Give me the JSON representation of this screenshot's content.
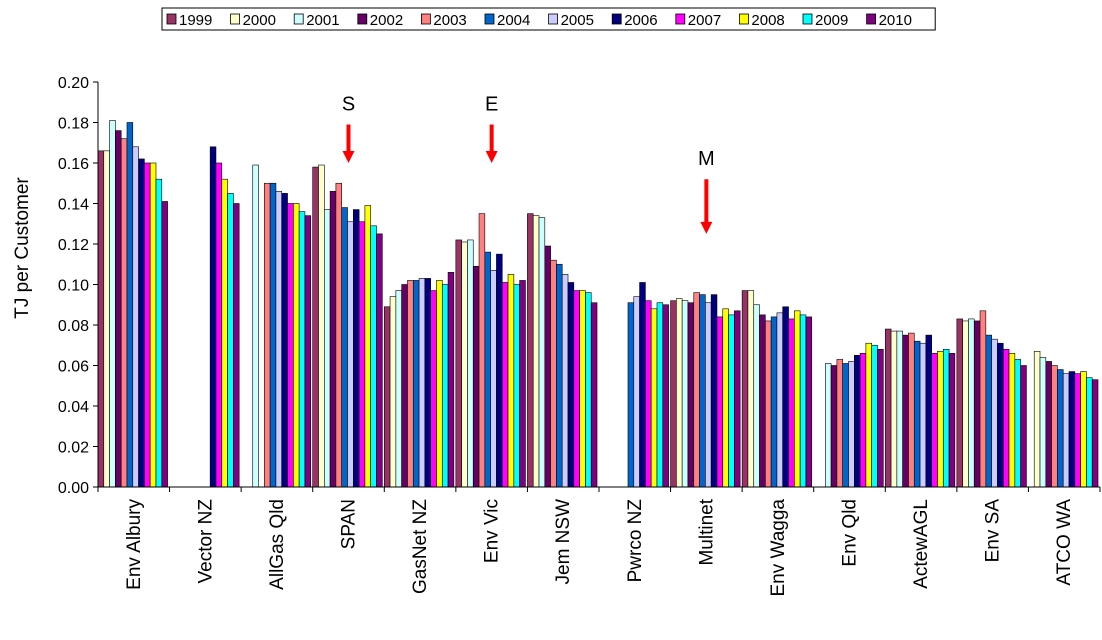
{
  "chart_data": {
    "type": "bar",
    "title": "",
    "xlabel": "",
    "ylabel": "TJ per Customer",
    "ylim": [
      0,
      0.2
    ],
    "yticks": [
      "0.00",
      "0.02",
      "0.04",
      "0.06",
      "0.08",
      "0.10",
      "0.12",
      "0.14",
      "0.16",
      "0.18",
      "0.20"
    ],
    "grid": false,
    "legend_position": "top",
    "categories": [
      "Env Albury",
      "Vector NZ",
      "AllGas Qld",
      "SPAN",
      "GasNet NZ",
      "Env Vic",
      "Jem NSW",
      "Pwrco NZ",
      "Multinet",
      "Env Wagga",
      "Env Qld",
      "ActewAGL",
      "Env SA",
      "ATCO WA"
    ],
    "series": [
      {
        "name": "1999",
        "color": "#993366",
        "values": [
          0.166,
          null,
          null,
          0.158,
          0.089,
          0.122,
          0.135,
          null,
          0.092,
          0.097,
          null,
          0.078,
          0.083,
          null
        ]
      },
      {
        "name": "2000",
        "color": "#FFFFCC",
        "values": [
          0.166,
          null,
          null,
          0.159,
          0.094,
          0.121,
          0.134,
          null,
          0.093,
          0.097,
          null,
          0.077,
          0.082,
          0.067
        ]
      },
      {
        "name": "2001",
        "color": "#CCFFFF",
        "values": [
          0.181,
          null,
          0.159,
          0.137,
          0.097,
          0.122,
          0.133,
          null,
          0.092,
          0.09,
          0.061,
          0.077,
          0.083,
          0.064
        ]
      },
      {
        "name": "2002",
        "color": "#660066",
        "values": [
          0.176,
          null,
          null,
          0.146,
          0.1,
          0.109,
          0.119,
          null,
          0.091,
          0.085,
          0.06,
          0.075,
          0.082,
          0.062
        ]
      },
      {
        "name": "2003",
        "color": "#FF8080",
        "values": [
          0.172,
          null,
          0.15,
          0.15,
          0.102,
          0.135,
          0.112,
          null,
          0.096,
          0.082,
          0.063,
          0.076,
          0.087,
          0.06
        ]
      },
      {
        "name": "2004",
        "color": "#0066CC",
        "values": [
          0.18,
          null,
          0.15,
          0.138,
          0.102,
          0.116,
          0.11,
          0.091,
          0.095,
          0.084,
          0.061,
          0.072,
          0.075,
          0.058
        ]
      },
      {
        "name": "2005",
        "color": "#CCCCFF",
        "values": [
          0.168,
          null,
          0.146,
          0.131,
          0.103,
          0.107,
          0.105,
          0.094,
          0.091,
          0.086,
          0.062,
          0.071,
          0.073,
          0.056
        ]
      },
      {
        "name": "2006",
        "color": "#000080",
        "values": [
          0.162,
          0.168,
          0.145,
          0.137,
          0.103,
          0.115,
          0.101,
          0.101,
          0.095,
          0.089,
          0.065,
          0.075,
          0.071,
          0.057
        ]
      },
      {
        "name": "2007",
        "color": "#FF00FF",
        "values": [
          0.16,
          0.16,
          0.14,
          0.131,
          0.097,
          0.101,
          0.097,
          0.092,
          0.084,
          0.083,
          0.066,
          0.066,
          0.068,
          0.056
        ]
      },
      {
        "name": "2008",
        "color": "#FFFF00",
        "values": [
          0.16,
          0.152,
          0.14,
          0.139,
          0.102,
          0.105,
          0.097,
          0.088,
          0.088,
          0.087,
          0.071,
          0.067,
          0.066,
          0.057
        ]
      },
      {
        "name": "2009",
        "color": "#00FFFF",
        "values": [
          0.152,
          0.145,
          0.136,
          0.129,
          0.1,
          0.1,
          0.096,
          0.091,
          0.085,
          0.085,
          0.07,
          0.068,
          0.063,
          0.054
        ]
      },
      {
        "name": "2010",
        "color": "#800080",
        "values": [
          0.141,
          0.14,
          0.134,
          0.125,
          0.106,
          0.102,
          0.091,
          0.09,
          0.087,
          0.084,
          0.068,
          0.066,
          0.06,
          0.053
        ]
      }
    ],
    "annotations": [
      {
        "text": "S",
        "category": "SPAN",
        "arrow_from": 0.179,
        "arrow_to": 0.16,
        "color": "#FF0000"
      },
      {
        "text": "E",
        "category": "Env Vic",
        "arrow_from": 0.179,
        "arrow_to": 0.16,
        "color": "#FF0000"
      },
      {
        "text": "M",
        "category": "Multinet",
        "arrow_from": 0.152,
        "arrow_to": 0.125,
        "color": "#FF0000"
      }
    ]
  }
}
